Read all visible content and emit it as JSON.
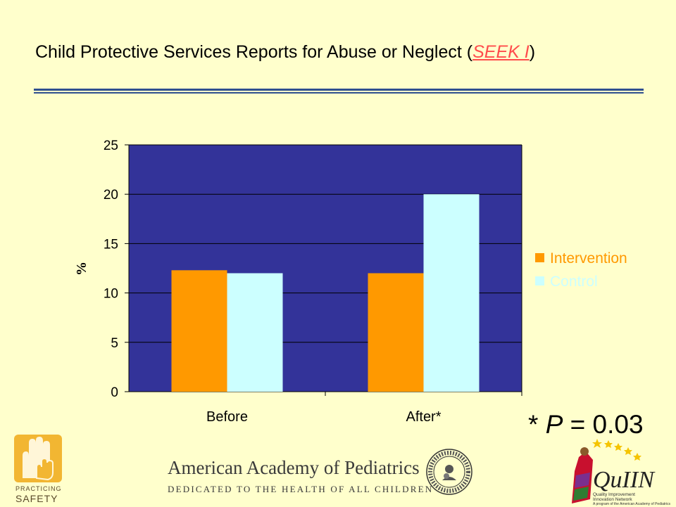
{
  "slide": {
    "title_prefix": "Child Protective Services Reports for Abuse or Neglect (",
    "title_link": "SEEK I",
    "title_suffix": ")",
    "p_note_prefix": "* ",
    "p_note_var": "P",
    "p_note_value": " = 0.03"
  },
  "chart_data": {
    "type": "bar",
    "categories": [
      "Before",
      "After*"
    ],
    "series": [
      {
        "name": "Intervention",
        "values": [
          12.3,
          12.0
        ],
        "color": "#ff9900"
      },
      {
        "name": "Control",
        "values": [
          12.0,
          20.0
        ],
        "color": "#ccffff"
      }
    ],
    "ylabel": "%",
    "ylim": [
      0,
      25
    ],
    "yticks": [
      0,
      5,
      10,
      15,
      20,
      25
    ],
    "plot_background": "#333399",
    "grid": true,
    "legend_position": "right"
  },
  "logos": {
    "practicing_safety_line1": "PRACTICING",
    "practicing_safety_line2": "SAFETY",
    "aap_name": "American Academy of Pediatrics",
    "aap_tagline": "DEDICATED TO THE HEALTH OF ALL CHILDREN™",
    "quiin_name": "QuIIN",
    "quiin_sub1": "Quality Improvement",
    "quiin_sub2": "Innovation Network",
    "quiin_sub3": "A program of the American Academy of Pediatrics"
  }
}
